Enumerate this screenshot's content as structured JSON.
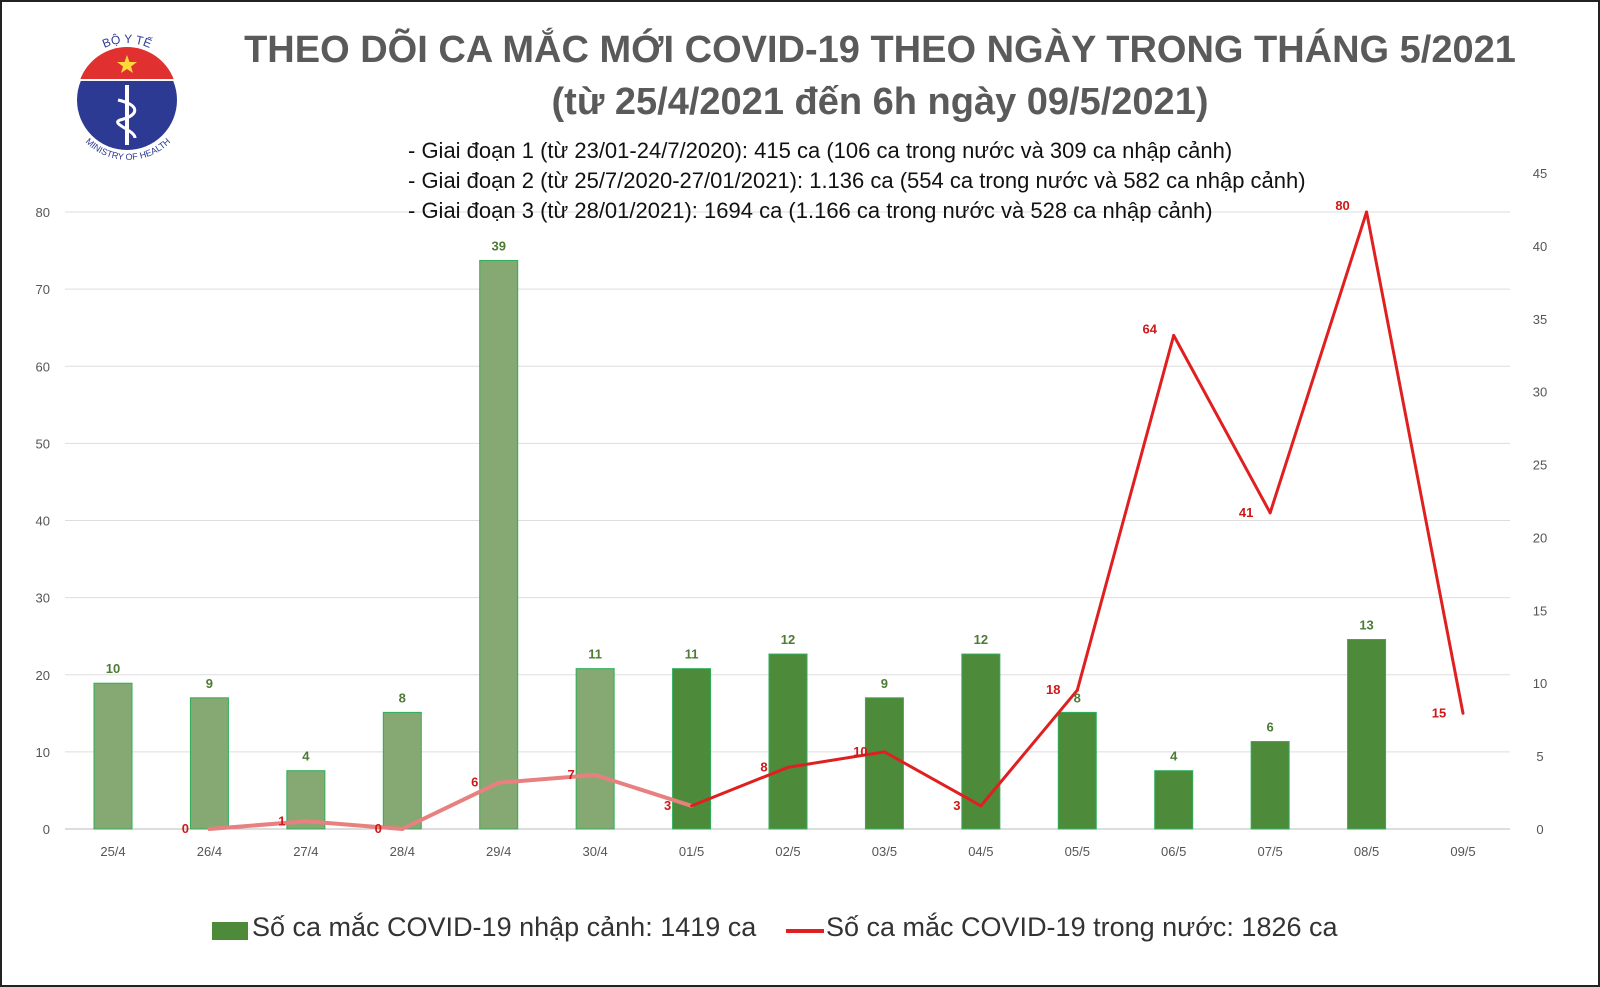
{
  "logo": {
    "top_text": "BỘ Y TẾ",
    "bottom_text": "MINISTRY OF HEALTH"
  },
  "title": {
    "line1": "THEO DÕI CA MẮC MỚI COVID-19 THEO NGÀY TRONG THÁNG 5/2021",
    "line2": "(từ 25/4/2021 đến 6h ngày 09/5/2021)"
  },
  "notes": [
    "- Giai đoạn 1 (từ 23/01-24/7/2020): 415 ca (106 ca trong nước và 309 ca nhập cảnh)",
    "- Giai đoạn 2 (từ 25/7/2020-27/01/2021): 1.136 ca (554 ca trong nước và 582 ca nhập cảnh)",
    "- Giai đoạn 3 (từ 28/01/2021): 1694 ca (1.166 ca trong nước và 528 ca nhập cảnh)"
  ],
  "legend": {
    "bars": "Số ca mắc COVID-19 nhập cảnh: 1419 ca",
    "line": "Số ca mắc COVID-19 trong nước: 1826 ca"
  },
  "chart_data": {
    "type": "bar+line",
    "categories": [
      "25/4",
      "26/4",
      "27/4",
      "28/4",
      "29/4",
      "30/4",
      "01/5",
      "02/5",
      "03/5",
      "04/5",
      "05/5",
      "06/5",
      "07/5",
      "08/5",
      "09/5"
    ],
    "series": [
      {
        "name": "Số ca mắc COVID-19 nhập cảnh: 1419 ca",
        "type": "bar",
        "axis": "right",
        "values": [
          10,
          9,
          4,
          8,
          39,
          11,
          11,
          12,
          9,
          12,
          8,
          4,
          6,
          13,
          null
        ],
        "color": "#4d8a3a",
        "color_earlier": "#86a872"
      },
      {
        "name": "Số ca mắc COVID-19 trong nước: 1826 ca",
        "type": "line",
        "axis": "left",
        "values": [
          null,
          0,
          1,
          0,
          6,
          7,
          3,
          8,
          10,
          3,
          18,
          64,
          41,
          80,
          15
        ],
        "color": "#e02020",
        "color_earlier": "#e88080"
      }
    ],
    "left_axis": {
      "range": [
        0,
        80
      ],
      "ticks": [
        0,
        10,
        20,
        30,
        40,
        50,
        60,
        70,
        80
      ]
    },
    "right_axis": {
      "range": [
        0,
        45
      ],
      "ticks": [
        0,
        5,
        10,
        15,
        20,
        25,
        30,
        35,
        40,
        45
      ]
    },
    "grid": true,
    "legend_position": "bottom"
  }
}
